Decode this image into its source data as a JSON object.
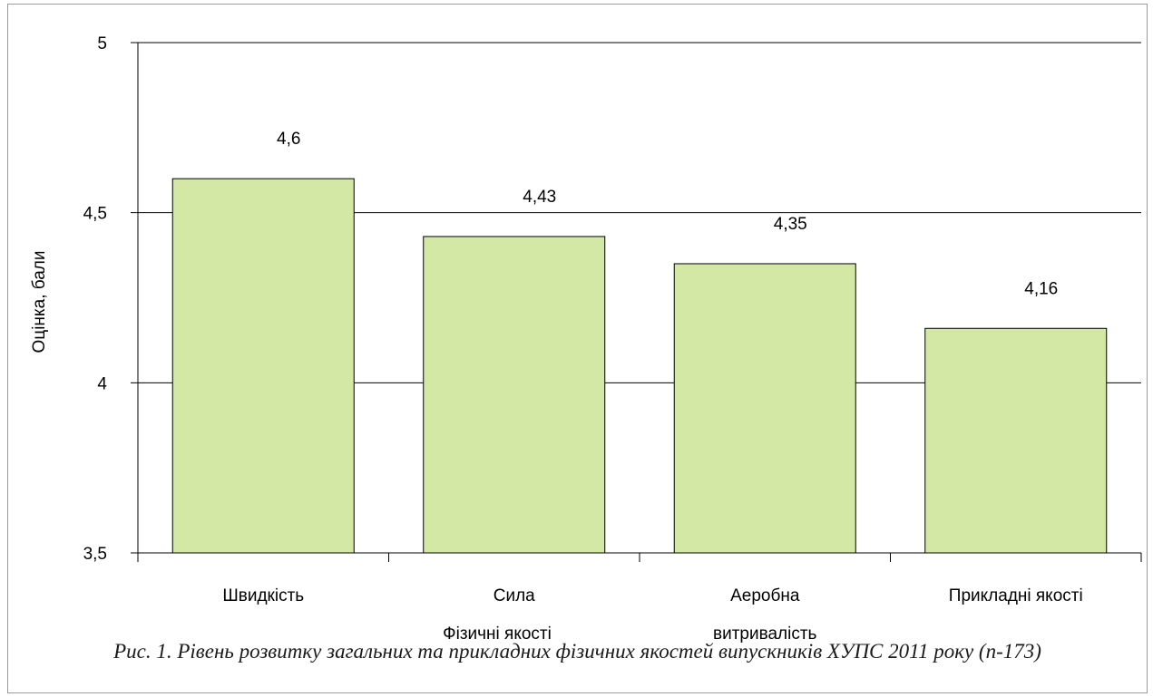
{
  "caption": "Рис. 1. Рівень розвитку загальних та прикладних фізичних якостей випускників ХУПС 2011 року (n-173)",
  "chart_data": {
    "type": "bar",
    "title": "",
    "xlabel": "Фізичні якості",
    "ylabel": "Оцінка, бали",
    "categories": [
      "Швидкість",
      "Сила",
      "Аеробна витривалість",
      "Прикладні якості"
    ],
    "category_lines": [
      [
        "Швидкість"
      ],
      [
        "Сила"
      ],
      [
        "Аеробна",
        "витривалість"
      ],
      [
        "Прикладні якості"
      ]
    ],
    "values": [
      4.6,
      4.43,
      4.35,
      4.16
    ],
    "value_labels": [
      "4,6",
      "4,43",
      "4,35",
      "4,16"
    ],
    "ylim": [
      3.5,
      5
    ],
    "yticks": [
      3.5,
      4,
      4.5,
      5
    ],
    "ytick_labels": [
      "3,5",
      "4",
      "4,5",
      "5"
    ],
    "grid": true,
    "legend": "none",
    "bar_color": "#d2e8a4",
    "bar_edge_color": "#000000"
  }
}
